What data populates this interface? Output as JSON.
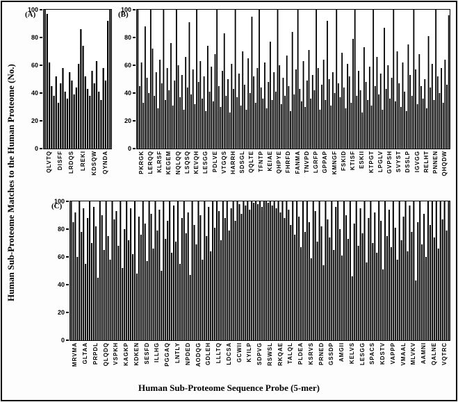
{
  "figure": {
    "y_axis_title": "Human Sub-Proteome Matches to the Human Proteome (No.)",
    "x_axis_title": "Human Sub-Proteome Sequence Probe (5-mer)",
    "bar_color": "#000000",
    "background_color": "#ffffff"
  },
  "chart_data": [
    {
      "type": "bar",
      "tag": "(A)",
      "ylim": [
        0,
        100
      ],
      "yticks": [
        0,
        20,
        40,
        60,
        80,
        100
      ],
      "categories": [
        "QLVTQ",
        "DISFF",
        "LRDQS",
        "LREKI",
        "KDSQW",
        "QYNDA"
      ],
      "values": [
        100,
        97,
        62,
        45,
        38,
        52,
        33,
        47,
        58,
        41,
        36,
        55,
        49,
        39,
        44,
        61,
        86,
        74,
        52,
        43,
        38,
        56,
        47,
        63,
        41,
        35,
        58,
        49,
        92,
        100
      ],
      "xlabel": "Human Sub-Proteome Sequence Probe (5-mer)",
      "ylabel": "Human Sub-Proteome Matches to the Human Proteome (No.)"
    },
    {
      "type": "bar",
      "tag": "(B)",
      "ylim": [
        0,
        100
      ],
      "yticks": [
        0,
        20,
        40,
        60,
        80,
        100
      ],
      "categories": [
        "PKRGK",
        "LERQQ",
        "KLRSF",
        "KEGEM",
        "NQLQQ",
        "LSQSQ",
        "KEVQH",
        "LESGG",
        "PDLVE",
        "VTGQS",
        "HARRH",
        "SDSGL",
        "QQLTE",
        "TFNTP",
        "KEIAE",
        "QHPYE",
        "FHRFD",
        "FANMA",
        "TNVPD",
        "LGRFP",
        "GPPAP",
        "KMNGF",
        "FSKID",
        "KTISF",
        "ESKII",
        "KTPGT",
        "LPGLV",
        "GVPSH",
        "SVYST",
        "DSSLP",
        "IGVGG",
        "RELHT",
        "PNNEN",
        "QHQDW"
      ],
      "values": [
        100,
        45,
        62,
        33,
        88,
        51,
        40,
        100,
        72,
        38,
        55,
        29,
        64,
        47,
        100,
        35,
        58,
        42,
        76,
        31,
        49,
        100,
        60,
        37,
        53,
        28,
        66,
        44,
        91,
        39,
        57,
        32,
        100,
        48,
        63,
        36,
        52,
        27,
        74,
        41,
        59,
        34,
        68,
        100,
        45,
        30,
        56,
        83,
        38,
        50,
        26,
        61,
        43,
        100,
        37,
        54,
        31,
        70,
        46,
        28,
        65,
        40,
        95,
        52,
        33,
        58,
        100,
        44,
        36,
        62,
        29,
        48,
        77,
        35,
        55,
        41,
        100,
        60,
        32,
        51,
        38,
        67,
        45,
        27,
        84,
        39,
        57,
        100,
        43,
        34,
        63,
        30,
        49,
        71,
        36,
        53,
        42,
        100,
        58,
        28,
        46,
        64,
        35,
        92,
        50,
        31,
        55,
        40,
        100,
        47,
        37,
        69,
        44,
        29,
        61,
        52,
        33,
        79,
        100,
        38,
        56,
        42,
        26,
        73,
        48,
        35,
        59,
        31,
        100,
        45,
        66,
        39,
        54,
        28,
        87,
        43,
        60,
        36,
        51,
        100,
        34,
        70,
        47,
        30,
        62,
        41,
        27,
        75,
        53,
        38,
        100,
        57,
        32,
        68,
        45,
        36,
        50,
        29,
        81,
        44,
        61,
        35,
        100,
        52,
        40,
        58,
        33,
        64,
        46,
        96
      ],
      "xlabel": "Human Sub-Proteome Sequence Probe (5-mer)",
      "ylabel": "Human Sub-Proteome Matches to the Human Proteome (No.)"
    },
    {
      "type": "bar",
      "tag": "(C)",
      "ylim": [
        0,
        100
      ],
      "yticks": [
        0,
        20,
        40,
        60,
        80,
        100
      ],
      "categories": [
        "MRVMA",
        "GLTAA",
        "PRPDL",
        "QLQDQ",
        "VSPKH",
        "KAGKP",
        "KDKEN",
        "SESFD",
        "ILLHG",
        "PGGAQ",
        "LNTLY",
        "NPDED",
        "AODQG",
        "GDLEH",
        "LLLTQ",
        "LDCSA",
        "GCWII",
        "KYILP",
        "SDPVG",
        "RSWSL",
        "RKQAE",
        "TALQL",
        "PLDEA",
        "KSRVS",
        "PRNED",
        "GSSDP",
        "AMGII",
        "KELVS",
        "LESGG",
        "SPACS",
        "KDSTV",
        "VAPPP",
        "VMAAL",
        "MLVKV",
        "AAMNI",
        "QALNE",
        "VQTRC"
      ],
      "values": [
        100,
        85,
        92,
        60,
        100,
        78,
        95,
        55,
        88,
        100,
        70,
        96,
        82,
        45,
        100,
        90,
        65,
        100,
        75,
        58,
        100,
        87,
        93,
        68,
        100,
        52,
        80,
        100,
        72,
        95,
        62,
        100,
        48,
        89,
        76,
        100,
        84,
        57,
        100,
        91,
        66,
        100,
        79,
        94,
        50,
        100,
        73,
        86,
        100,
        63,
        97,
        71,
        100,
        55,
        88,
        100,
        77,
        92,
        47,
        100,
        83,
        69,
        100,
        90,
        58,
        100,
        75,
        96,
        64,
        100,
        81,
        100,
        93,
        72,
        100,
        88,
        100,
        79,
        95,
        100,
        86,
        100,
        98,
        91,
        100,
        97,
        100,
        94,
        100,
        99,
        100,
        98,
        100,
        96,
        100,
        100,
        99,
        100,
        97,
        100,
        95,
        100,
        92,
        100,
        88,
        100,
        94,
        83,
        100,
        76,
        100,
        89,
        67,
        100,
        78,
        100,
        85,
        59,
        100,
        93,
        71,
        100,
        82,
        54,
        100,
        87,
        74,
        100,
        65,
        96,
        100,
        80,
        61,
        100,
        90,
        73,
        100,
        46,
        84,
        100,
        68,
        95,
        77,
        100,
        56,
        88,
        100,
        70,
        92,
        63,
        100,
        86,
        51,
        100,
        75,
        94,
        67,
        100,
        81,
        58,
        100,
        72,
        89,
        100,
        64,
        97,
        78,
        100,
        43,
        85,
        100,
        69,
        91,
        60,
        100,
        83,
        100,
        74,
        100,
        66,
        100,
        87,
        100,
        79,
        100
      ],
      "xlabel": "Human Sub-Proteome Sequence Probe (5-mer)",
      "ylabel": "Human Sub-Proteome Matches to the Human Proteome (No.)"
    }
  ]
}
